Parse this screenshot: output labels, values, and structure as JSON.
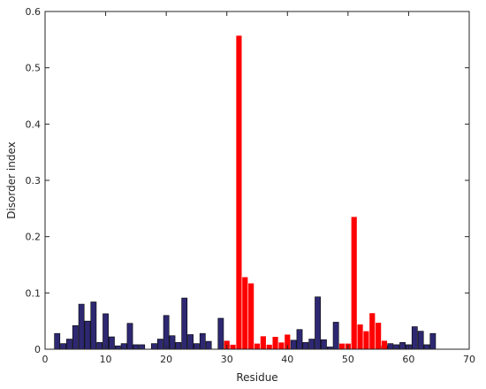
{
  "chart_data": {
    "type": "bar",
    "title": "",
    "xlabel": "Residue",
    "ylabel": "Disorder index",
    "xlim": [
      0,
      70
    ],
    "ylim": [
      0,
      0.6
    ],
    "xticks": [
      0,
      10,
      20,
      30,
      40,
      50,
      60,
      70
    ],
    "yticks": [
      0,
      0.1,
      0.2,
      0.3,
      0.4,
      0.5,
      0.6
    ],
    "xtick_labels": [
      "0",
      "10",
      "20",
      "30",
      "40",
      "50",
      "60",
      "70"
    ],
    "ytick_labels": [
      "0",
      "0.1",
      "0.2",
      "0.3",
      "0.4",
      "0.5",
      "0.6"
    ],
    "grid": false,
    "colors": {
      "ordered": "#2e2872",
      "disordered": "#ff0000",
      "axis": "#262626"
    },
    "series": [
      {
        "color_key": "ordered",
        "x": [
          2,
          3,
          4,
          5,
          6,
          7,
          8,
          9,
          10,
          11,
          12,
          13,
          14,
          15,
          16,
          18,
          19,
          20,
          21,
          22,
          23,
          24,
          25,
          26,
          27,
          29,
          41,
          42,
          43,
          44,
          45,
          46,
          47,
          48,
          56,
          57,
          58,
          59,
          60,
          61,
          62,
          63,
          64
        ],
        "values": [
          0.028,
          0.01,
          0.018,
          0.042,
          0.08,
          0.05,
          0.084,
          0.012,
          0.063,
          0.022,
          0.006,
          0.01,
          0.046,
          0.008,
          0.008,
          0.01,
          0.018,
          0.06,
          0.024,
          0.012,
          0.091,
          0.026,
          0.01,
          0.028,
          0.014,
          0.055,
          0.016,
          0.035,
          0.012,
          0.018,
          0.093,
          0.017,
          0.004,
          0.048,
          0.006,
          0.01,
          0.008,
          0.012,
          0.008,
          0.04,
          0.032,
          0.008,
          0.028
        ]
      },
      {
        "color_key": "disordered",
        "x": [
          30,
          31,
          32,
          33,
          34,
          35,
          36,
          37,
          38,
          39,
          40,
          49,
          50,
          51,
          52,
          53,
          54,
          55,
          56
        ],
        "values": [
          0.015,
          0.008,
          0.557,
          0.128,
          0.117,
          0.01,
          0.023,
          0.008,
          0.022,
          0.012,
          0.026,
          0.01,
          0.01,
          0.235,
          0.044,
          0.032,
          0.064,
          0.047,
          0.015
        ]
      }
    ]
  }
}
